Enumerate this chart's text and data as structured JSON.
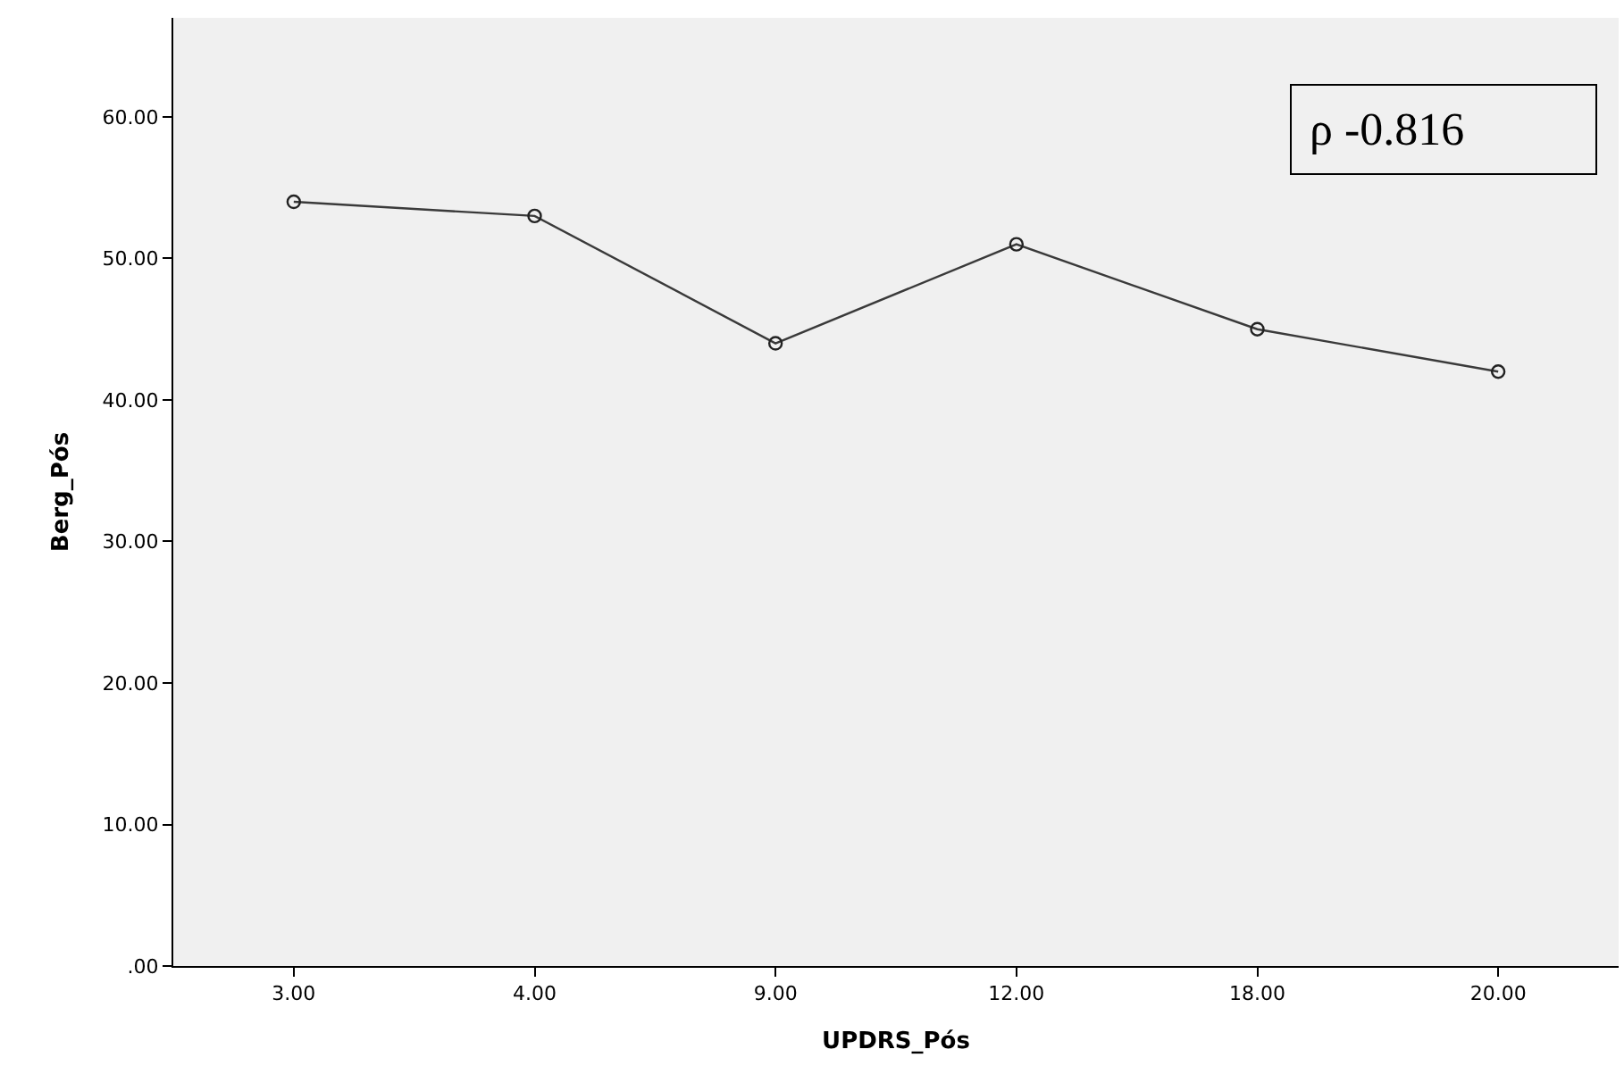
{
  "chart_data": {
    "type": "line",
    "xlabel": "UPDRS_Pós",
    "ylabel": "Berg_Pós",
    "categories": [
      "3.00",
      "4.00",
      "9.00",
      "12.00",
      "18.00",
      "20.00"
    ],
    "series": [
      {
        "color": "#3a3a3a",
        "values": [
          54,
          53,
          44,
          51,
          45,
          42
        ]
      }
    ],
    "ylim": [
      0,
      67
    ],
    "yticks": [
      {
        "value": 0,
        "label": ".00"
      },
      {
        "value": 10,
        "label": "10.00"
      },
      {
        "value": 20,
        "label": "20.00"
      },
      {
        "value": 30,
        "label": "30.00"
      },
      {
        "value": 40,
        "label": "40.00"
      },
      {
        "value": 50,
        "label": "50.00"
      },
      {
        "value": 60,
        "label": "60.00"
      }
    ],
    "annotations": [
      "ρ -0.816"
    ],
    "marker": "circle",
    "line_style": "solid",
    "grid": false
  }
}
